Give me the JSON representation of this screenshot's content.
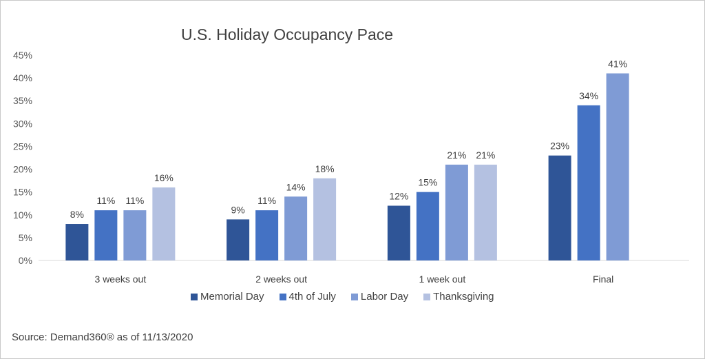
{
  "chart_data": {
    "type": "bar",
    "title": "U.S. Holiday Occupancy Pace",
    "categories": [
      "3 weeks out",
      "2 weeks out",
      "1 week out",
      "Final"
    ],
    "series": [
      {
        "name": "Memorial Day",
        "color": "#2F5597",
        "values": [
          8,
          9,
          12,
          23
        ],
        "labels": [
          "8%",
          "9%",
          "12%",
          "23%"
        ]
      },
      {
        "name": "4th of July",
        "color": "#4472C4",
        "values": [
          11,
          11,
          15,
          34
        ],
        "labels": [
          "11%",
          "11%",
          "15%",
          "34%"
        ]
      },
      {
        "name": "Labor Day",
        "color": "#7F9BD5",
        "values": [
          11,
          14,
          21,
          41
        ],
        "labels": [
          "11%",
          "14%",
          "21%",
          "41%"
        ]
      },
      {
        "name": "Thanksgiving",
        "color": "#B4C1E1",
        "values": [
          16,
          18,
          21,
          null
        ],
        "labels": [
          "16%",
          "18%",
          "21%",
          ""
        ]
      }
    ],
    "ylim": [
      0,
      45
    ],
    "yticks": [
      "0%",
      "5%",
      "10%",
      "15%",
      "20%",
      "25%",
      "30%",
      "35%",
      "40%",
      "45%"
    ],
    "grid": false,
    "legend": "bottom",
    "xlabel": "",
    "ylabel": ""
  },
  "source": "Source:  Demand360® as of 11/13/2020"
}
